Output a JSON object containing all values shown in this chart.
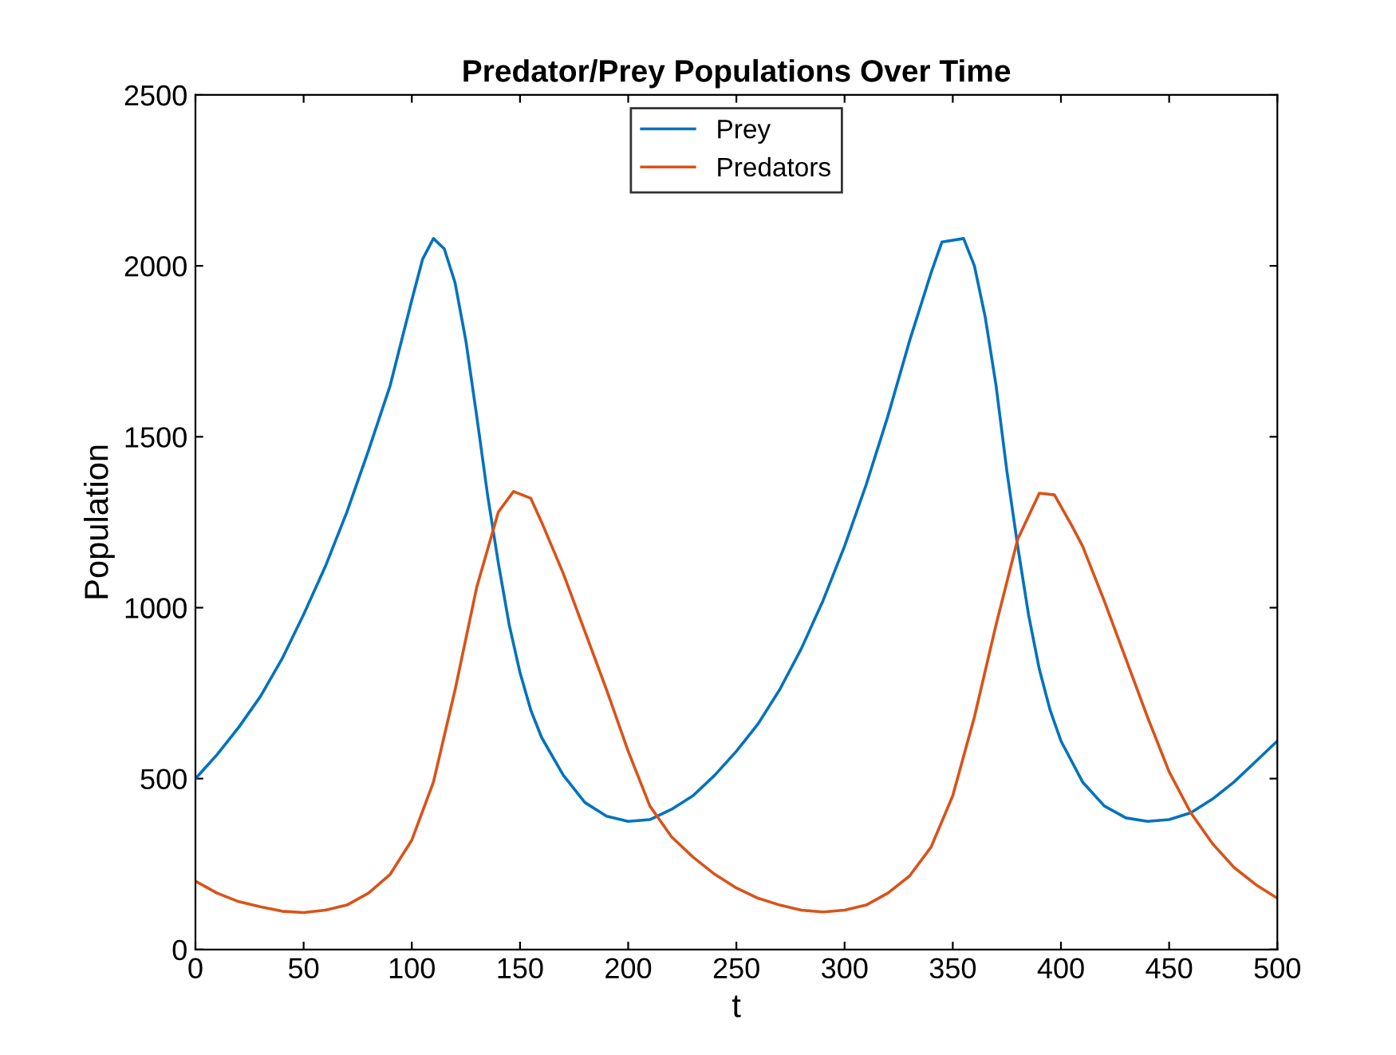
{
  "chart_data": {
    "type": "line",
    "title": "Predator/Prey Populations Over Time",
    "xlabel": "t",
    "ylabel": "Population",
    "xlim": [
      0,
      500
    ],
    "xticks": [
      0,
      50,
      100,
      150,
      200,
      250,
      300,
      350,
      400,
      450,
      500
    ],
    "ylim": [
      0,
      2500
    ],
    "yticks": [
      0,
      500,
      1000,
      1500,
      2000,
      2500
    ],
    "grid": false,
    "legend": "top",
    "marker": "none",
    "line_style": "solid",
    "series": [
      {
        "name": "Prey",
        "color": "#0072bd",
        "x": [
          0,
          10,
          20,
          30,
          40,
          50,
          60,
          70,
          80,
          90,
          100,
          105,
          110,
          115,
          120,
          125,
          130,
          135,
          140,
          145,
          150,
          155,
          160,
          170,
          180,
          190,
          200,
          210,
          220,
          230,
          240,
          250,
          260,
          270,
          280,
          290,
          300,
          310,
          320,
          330,
          340,
          345,
          355,
          360,
          365,
          370,
          375,
          380,
          385,
          390,
          395,
          400,
          410,
          420,
          430,
          440,
          450,
          460,
          470,
          480,
          490,
          500
        ],
        "values": [
          500,
          570,
          650,
          740,
          850,
          980,
          1120,
          1280,
          1460,
          1650,
          1900,
          2020,
          2080,
          2050,
          1950,
          1780,
          1560,
          1330,
          1130,
          950,
          810,
          700,
          620,
          510,
          430,
          390,
          375,
          380,
          410,
          450,
          510,
          580,
          660,
          760,
          880,
          1020,
          1180,
          1360,
          1560,
          1780,
          1980,
          2070,
          2080,
          2000,
          1850,
          1650,
          1400,
          1180,
          980,
          820,
          700,
          610,
          490,
          420,
          385,
          375,
          380,
          400,
          440,
          490,
          550,
          610
        ]
      },
      {
        "name": "Predators",
        "color": "#d95319",
        "x": [
          0,
          10,
          20,
          30,
          40,
          50,
          60,
          70,
          80,
          90,
          100,
          110,
          120,
          130,
          140,
          147,
          155,
          160,
          170,
          180,
          190,
          200,
          210,
          220,
          230,
          240,
          250,
          260,
          270,
          280,
          290,
          300,
          310,
          320,
          330,
          340,
          350,
          360,
          370,
          380,
          390,
          397,
          405,
          410,
          420,
          430,
          440,
          450,
          460,
          470,
          480,
          490,
          500
        ],
        "values": [
          200,
          165,
          140,
          125,
          112,
          108,
          115,
          130,
          165,
          220,
          320,
          490,
          760,
          1060,
          1280,
          1340,
          1320,
          1250,
          1100,
          930,
          760,
          580,
          420,
          330,
          270,
          220,
          180,
          150,
          130,
          115,
          110,
          115,
          130,
          165,
          215,
          300,
          450,
          680,
          950,
          1200,
          1335,
          1330,
          1240,
          1180,
          1020,
          850,
          680,
          520,
          400,
          310,
          240,
          190,
          150
        ]
      }
    ]
  }
}
